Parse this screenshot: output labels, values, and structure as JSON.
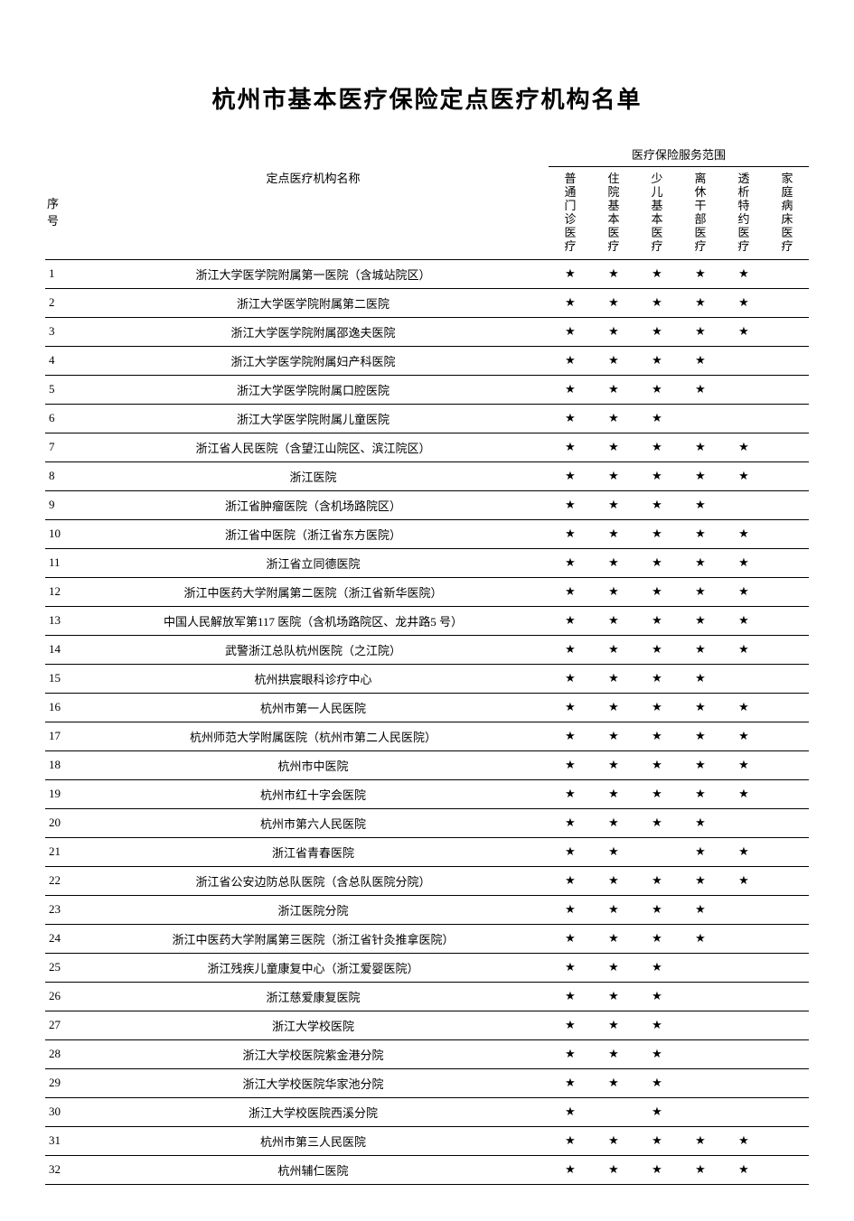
{
  "title": "杭州市基本医疗保险定点医疗机构名单",
  "scope_header": "医疗保险服务范围",
  "star": "★",
  "columns": {
    "seq": "序号",
    "name": "定点医疗机构名称",
    "svc": [
      "普通门诊医疗",
      "住院基本医疗",
      "少儿基本医疗",
      "离休干部医疗",
      "透析特约医疗",
      "家庭病床医疗"
    ]
  },
  "rows": [
    {
      "n": "1",
      "name": "浙江大学医学院附属第一医院（含城站院区）",
      "s": [
        1,
        1,
        1,
        1,
        1,
        0
      ]
    },
    {
      "n": "2",
      "name": "浙江大学医学院附属第二医院",
      "s": [
        1,
        1,
        1,
        1,
        1,
        0
      ]
    },
    {
      "n": "3",
      "name": "浙江大学医学院附属邵逸夫医院",
      "s": [
        1,
        1,
        1,
        1,
        1,
        0
      ]
    },
    {
      "n": "4",
      "name": "浙江大学医学院附属妇产科医院",
      "s": [
        1,
        1,
        1,
        1,
        0,
        0
      ]
    },
    {
      "n": "5",
      "name": "浙江大学医学院附属口腔医院",
      "s": [
        1,
        1,
        1,
        1,
        0,
        0
      ]
    },
    {
      "n": "6",
      "name": "浙江大学医学院附属儿童医院",
      "s": [
        1,
        1,
        1,
        0,
        0,
        0
      ]
    },
    {
      "n": "7",
      "name": "浙江省人民医院（含望江山院区、滨江院区）",
      "s": [
        1,
        1,
        1,
        1,
        1,
        0
      ]
    },
    {
      "n": "8",
      "name": "浙江医院",
      "s": [
        1,
        1,
        1,
        1,
        1,
        0
      ]
    },
    {
      "n": "9",
      "name": "浙江省肿瘤医院（含机场路院区）",
      "s": [
        1,
        1,
        1,
        1,
        0,
        0
      ]
    },
    {
      "n": "10",
      "name": "浙江省中医院（浙江省东方医院）",
      "s": [
        1,
        1,
        1,
        1,
        1,
        0
      ]
    },
    {
      "n": "11",
      "name": "浙江省立同德医院",
      "s": [
        1,
        1,
        1,
        1,
        1,
        0
      ]
    },
    {
      "n": "12",
      "name": "浙江中医药大学附属第二医院（浙江省新华医院）",
      "s": [
        1,
        1,
        1,
        1,
        1,
        0
      ]
    },
    {
      "n": "13",
      "name": "中国人民解放军第117 医院（含机场路院区、龙井路5 号）",
      "s": [
        1,
        1,
        1,
        1,
        1,
        0
      ]
    },
    {
      "n": "14",
      "name": "武警浙江总队杭州医院（之江院）",
      "s": [
        1,
        1,
        1,
        1,
        1,
        0
      ]
    },
    {
      "n": "15",
      "name": "杭州拱宸眼科诊疗中心",
      "s": [
        1,
        1,
        1,
        1,
        0,
        0
      ]
    },
    {
      "n": "16",
      "name": "杭州市第一人民医院",
      "s": [
        1,
        1,
        1,
        1,
        1,
        0
      ]
    },
    {
      "n": "17",
      "name": "杭州师范大学附属医院（杭州市第二人民医院）",
      "s": [
        1,
        1,
        1,
        1,
        1,
        0
      ]
    },
    {
      "n": "18",
      "name": "杭州市中医院",
      "s": [
        1,
        1,
        1,
        1,
        1,
        0
      ]
    },
    {
      "n": "19",
      "name": "杭州市红十字会医院",
      "s": [
        1,
        1,
        1,
        1,
        1,
        0
      ]
    },
    {
      "n": "20",
      "name": "杭州市第六人民医院",
      "s": [
        1,
        1,
        1,
        1,
        0,
        0
      ]
    },
    {
      "n": "21",
      "name": "浙江省青春医院",
      "s": [
        1,
        1,
        0,
        1,
        1,
        0
      ]
    },
    {
      "n": "22",
      "name": "浙江省公安边防总队医院（含总队医院分院）",
      "s": [
        1,
        1,
        1,
        1,
        1,
        0
      ]
    },
    {
      "n": "23",
      "name": "浙江医院分院",
      "s": [
        1,
        1,
        1,
        1,
        0,
        0
      ]
    },
    {
      "n": "24",
      "name": "浙江中医药大学附属第三医院（浙江省针灸推拿医院）",
      "s": [
        1,
        1,
        1,
        1,
        0,
        0
      ]
    },
    {
      "n": "25",
      "name": "浙江残疾儿童康复中心（浙江爱婴医院）",
      "s": [
        1,
        1,
        1,
        0,
        0,
        0
      ]
    },
    {
      "n": "26",
      "name": "浙江慈爱康复医院",
      "s": [
        1,
        1,
        1,
        0,
        0,
        0
      ]
    },
    {
      "n": "27",
      "name": "浙江大学校医院",
      "s": [
        1,
        1,
        1,
        0,
        0,
        0
      ]
    },
    {
      "n": "28",
      "name": "浙江大学校医院紫金港分院",
      "s": [
        1,
        1,
        1,
        0,
        0,
        0
      ]
    },
    {
      "n": "29",
      "name": "浙江大学校医院华家池分院",
      "s": [
        1,
        1,
        1,
        0,
        0,
        0
      ]
    },
    {
      "n": "30",
      "name": "浙江大学校医院西溪分院",
      "s": [
        1,
        0,
        1,
        0,
        0,
        0
      ]
    },
    {
      "n": "31",
      "name": "杭州市第三人民医院",
      "s": [
        1,
        1,
        1,
        1,
        1,
        0
      ]
    },
    {
      "n": "32",
      "name": "杭州辅仁医院",
      "s": [
        1,
        1,
        1,
        1,
        1,
        0
      ]
    }
  ],
  "colors": {
    "text": "#000000",
    "background": "#ffffff",
    "border": "#000000"
  }
}
